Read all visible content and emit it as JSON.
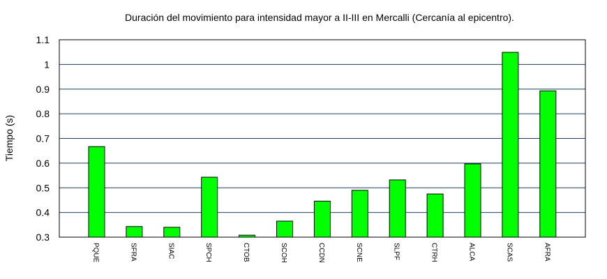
{
  "chart_data": {
    "type": "bar",
    "title": "Duración del movimiento para intensidad mayor a II-III en Mercalli (Cercanía al epicentro).",
    "xlabel": "",
    "ylabel": "Tiempo (s)",
    "ylim": [
      0.3,
      1.1
    ],
    "yticks": [
      "0.3",
      "0.4",
      "0.5",
      "0.6",
      "0.7",
      "0.8",
      "0.9",
      "1",
      "1.1"
    ],
    "grid": true,
    "bar_color": "#00ff00",
    "grid_color": "#1f3f66",
    "categories": [
      "PQUE",
      "SFRA",
      "SIAC",
      "SPCH",
      "CTOB",
      "SCOH",
      "CCDN",
      "SCNE",
      "SLPF",
      "CTRH",
      "ALCA",
      "SCAS",
      "AFRA"
    ],
    "values": [
      0.667,
      0.343,
      0.34,
      0.543,
      0.308,
      0.365,
      0.446,
      0.49,
      0.532,
      0.475,
      0.597,
      1.049,
      0.893
    ]
  }
}
